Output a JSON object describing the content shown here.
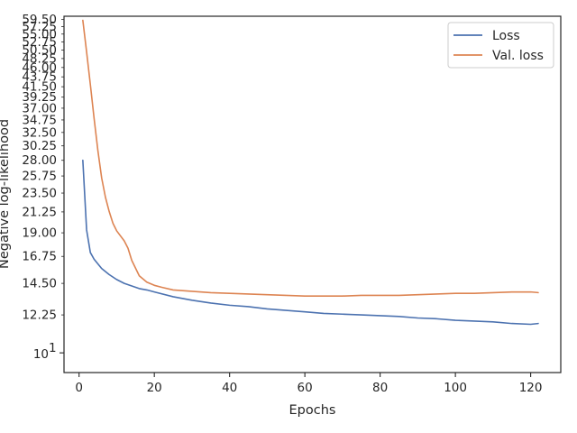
{
  "chart_data": {
    "type": "line",
    "title": "",
    "xlabel": "Epochs",
    "ylabel": "Negative log-likelihood",
    "xlim": [
      -4,
      128
    ],
    "ylim": [
      9.0,
      60.5
    ],
    "y_scale": "log",
    "grid": false,
    "legend_position": "top-right",
    "x_ticks": [
      0,
      20,
      40,
      60,
      80,
      100,
      120
    ],
    "x_tick_labels": [
      "0",
      "20",
      "40",
      "60",
      "80",
      "100",
      "120"
    ],
    "y_ticks": [
      12.25,
      14.5,
      16.75,
      19.0,
      21.25,
      23.5,
      25.75,
      28.0,
      30.25,
      32.5,
      34.75,
      37.0,
      39.25,
      41.5,
      43.75,
      46.0,
      48.25,
      50.5,
      52.75,
      55.0,
      57.25,
      59.5
    ],
    "y_tick_labels": [
      "12.25",
      "14.50",
      "16.75",
      "19.00",
      "21.25",
      "23.50",
      "25.75",
      "28.00",
      "30.25",
      "32.50",
      "34.75",
      "37.00",
      "39.25",
      "41.50",
      "43.75",
      "46.00",
      "48.25",
      "50.50",
      "52.75",
      "55.00",
      "57.25",
      "59.50"
    ],
    "y_major_tick_value": 10,
    "y_major_tick_label": "10",
    "y_major_tick_exponent": "1",
    "series": [
      {
        "name": "Loss",
        "color": "#4c72b0",
        "x": [
          1,
          2,
          3,
          4,
          6,
          8,
          10,
          12,
          14,
          16,
          18,
          20,
          25,
          30,
          35,
          40,
          45,
          50,
          55,
          60,
          65,
          70,
          75,
          80,
          85,
          90,
          95,
          100,
          105,
          110,
          115,
          120,
          122
        ],
        "values": [
          28.0,
          19.3,
          17.1,
          16.5,
          15.7,
          15.2,
          14.8,
          14.5,
          14.3,
          14.1,
          14.0,
          13.85,
          13.5,
          13.25,
          13.05,
          12.9,
          12.8,
          12.65,
          12.55,
          12.45,
          12.35,
          12.3,
          12.25,
          12.2,
          12.15,
          12.05,
          12.0,
          11.9,
          11.85,
          11.8,
          11.7,
          11.65,
          11.7
        ]
      },
      {
        "name": "Val. loss",
        "color": "#dd8452",
        "x": [
          1,
          2,
          3,
          4,
          5,
          6,
          7,
          8,
          9,
          10,
          12,
          13,
          14,
          16,
          18,
          20,
          22,
          25,
          30,
          35,
          40,
          45,
          50,
          55,
          60,
          65,
          70,
          75,
          80,
          85,
          90,
          95,
          100,
          105,
          110,
          115,
          120,
          122
        ],
        "values": [
          59.2,
          50.0,
          42.0,
          35.0,
          29.5,
          25.5,
          23.0,
          21.3,
          20.0,
          19.2,
          18.2,
          17.5,
          16.4,
          15.1,
          14.6,
          14.35,
          14.2,
          14.0,
          13.9,
          13.8,
          13.75,
          13.7,
          13.65,
          13.6,
          13.55,
          13.55,
          13.55,
          13.6,
          13.6,
          13.6,
          13.65,
          13.7,
          13.75,
          13.75,
          13.8,
          13.85,
          13.85,
          13.8
        ]
      }
    ]
  }
}
